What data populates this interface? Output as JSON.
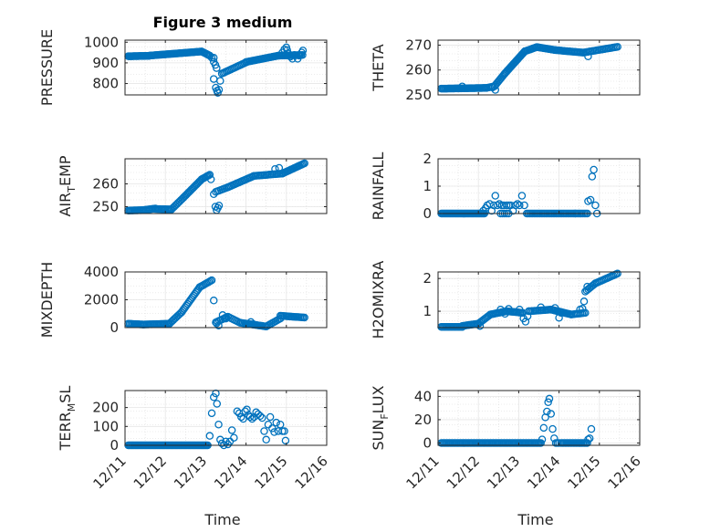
{
  "figure": {
    "title": "Figure 3 medium",
    "background": "#ffffff",
    "marker_color": "#0072BD",
    "x_tick_labels": [
      "12/11",
      "12/12",
      "12/13",
      "12/14",
      "12/15",
      "12/16"
    ],
    "x_axis_label": "Time"
  },
  "chart_data": [
    {
      "id": "pressure",
      "type": "scatter",
      "marker": "circle-open",
      "ylabel": "PRESSURE",
      "ylabel_sub": "",
      "ylim": [
        745,
        1010
      ],
      "yticks": [
        800,
        900,
        1000
      ],
      "xlim": [
        0,
        5
      ],
      "xtick_labels": [
        "12/11",
        "12/12",
        "12/13",
        "12/14",
        "12/15",
        "12/16"
      ],
      "grid": true,
      "segments": [
        {
          "x0": 0.08,
          "x1": 0.6,
          "y0": 932,
          "y1": 934,
          "n": 26
        },
        {
          "x0": 0.6,
          "x1": 1.9,
          "y0": 935,
          "y1": 955,
          "n": 50
        },
        {
          "x0": 1.9,
          "x1": 2.1,
          "y0": 955,
          "y1": 935,
          "n": 8
        },
        {
          "x0": 2.4,
          "x1": 3.0,
          "y0": 848,
          "y1": 902,
          "n": 18
        },
        {
          "x0": 3.0,
          "x1": 3.8,
          "y0": 904,
          "y1": 935,
          "n": 25
        },
        {
          "x0": 3.8,
          "x1": 4.4,
          "y0": 935,
          "y1": 938,
          "n": 18
        }
      ],
      "points": [
        {
          "x": 2.1,
          "y": 935
        },
        {
          "x": 2.15,
          "y": 925
        },
        {
          "x": 2.2,
          "y": 905
        },
        {
          "x": 2.24,
          "y": 890
        },
        {
          "x": 2.27,
          "y": 875
        },
        {
          "x": 2.2,
          "y": 822
        },
        {
          "x": 2.25,
          "y": 780
        },
        {
          "x": 2.28,
          "y": 765
        },
        {
          "x": 2.3,
          "y": 755
        },
        {
          "x": 2.33,
          "y": 770
        },
        {
          "x": 2.36,
          "y": 813
        },
        {
          "x": 2.2,
          "y": 925
        },
        {
          "x": 3.9,
          "y": 950
        },
        {
          "x": 3.95,
          "y": 965
        },
        {
          "x": 4.0,
          "y": 975
        },
        {
          "x": 4.02,
          "y": 962
        },
        {
          "x": 4.05,
          "y": 945
        },
        {
          "x": 4.1,
          "y": 930
        },
        {
          "x": 4.15,
          "y": 920
        },
        {
          "x": 4.2,
          "y": 938
        },
        {
          "x": 4.28,
          "y": 920
        },
        {
          "x": 4.32,
          "y": 935
        },
        {
          "x": 4.38,
          "y": 950
        },
        {
          "x": 4.41,
          "y": 960
        }
      ]
    },
    {
      "id": "theta",
      "type": "scatter",
      "marker": "circle-open",
      "ylabel": "THETA",
      "ylabel_sub": "",
      "ylim": [
        250,
        272
      ],
      "yticks": [
        250,
        260,
        270
      ],
      "xlim": [
        0,
        5
      ],
      "xtick_labels": [
        "12/11",
        "12/12",
        "12/13",
        "12/14",
        "12/15",
        "12/16"
      ],
      "grid": true,
      "segments": [
        {
          "x0": 0.08,
          "x1": 1.2,
          "y0": 252.5,
          "y1": 252.8,
          "n": 40
        },
        {
          "x0": 1.2,
          "x1": 1.4,
          "y0": 252.8,
          "y1": 253.5,
          "n": 6
        },
        {
          "x0": 1.4,
          "x1": 1.65,
          "y0": 253.5,
          "y1": 258.5,
          "n": 10
        },
        {
          "x0": 1.65,
          "x1": 2.15,
          "y0": 258.5,
          "y1": 267.5,
          "n": 22
        },
        {
          "x0": 2.15,
          "x1": 2.45,
          "y0": 267.5,
          "y1": 269.2,
          "n": 10
        },
        {
          "x0": 2.45,
          "x1": 2.9,
          "y0": 269.2,
          "y1": 268.0,
          "n": 14
        },
        {
          "x0": 2.9,
          "x1": 3.6,
          "y0": 268.0,
          "y1": 267.0,
          "n": 22
        },
        {
          "x0": 3.6,
          "x1": 4.45,
          "y0": 267.0,
          "y1": 269.3,
          "n": 24
        }
      ],
      "points": [
        {
          "x": 1.35,
          "y": 253.0
        },
        {
          "x": 1.42,
          "y": 252.0
        },
        {
          "x": 3.72,
          "y": 265.5
        },
        {
          "x": 0.6,
          "y": 253.4
        }
      ]
    },
    {
      "id": "air_temp",
      "type": "scatter",
      "marker": "circle-open",
      "ylabel": "AIR",
      "ylabel_sub": "T",
      "ylabel_after": "EMP",
      "ylim": [
        247,
        271
      ],
      "yticks": [
        250,
        260
      ],
      "xlim": [
        0,
        5
      ],
      "xtick_labels": [
        "12/11",
        "12/12",
        "12/13",
        "12/14",
        "12/15",
        "12/16"
      ],
      "grid": true,
      "segments": [
        {
          "x0": 0.08,
          "x1": 0.45,
          "y0": 248.3,
          "y1": 248.5,
          "n": 14
        },
        {
          "x0": 0.45,
          "x1": 0.75,
          "y0": 248.5,
          "y1": 249.2,
          "n": 10
        },
        {
          "x0": 0.75,
          "x1": 1.15,
          "y0": 249.0,
          "y1": 248.8,
          "n": 14
        },
        {
          "x0": 1.15,
          "x1": 1.45,
          "y0": 248.8,
          "y1": 254.0,
          "n": 10
        },
        {
          "x0": 1.45,
          "x1": 1.9,
          "y0": 254.0,
          "y1": 262.0,
          "n": 16
        },
        {
          "x0": 1.9,
          "x1": 2.1,
          "y0": 262.0,
          "y1": 264.0,
          "n": 8
        },
        {
          "x0": 2.25,
          "x1": 2.55,
          "y0": 256.5,
          "y1": 258.5,
          "n": 8
        },
        {
          "x0": 2.55,
          "x1": 3.2,
          "y0": 258.5,
          "y1": 263.5,
          "n": 20
        },
        {
          "x0": 3.2,
          "x1": 3.9,
          "y0": 263.5,
          "y1": 264.5,
          "n": 20
        },
        {
          "x0": 3.9,
          "x1": 4.45,
          "y0": 264.5,
          "y1": 269.0,
          "n": 18
        }
      ],
      "points": [
        {
          "x": 2.13,
          "y": 262.0
        },
        {
          "x": 2.2,
          "y": 255.5
        },
        {
          "x": 2.24,
          "y": 250.0
        },
        {
          "x": 2.27,
          "y": 248.5
        },
        {
          "x": 2.3,
          "y": 249.5
        },
        {
          "x": 2.33,
          "y": 250.5
        },
        {
          "x": 3.72,
          "y": 266.5
        },
        {
          "x": 3.82,
          "y": 267.0
        }
      ]
    },
    {
      "id": "rainfall",
      "type": "scatter",
      "marker": "circle-open",
      "ylabel": "RAINFALL",
      "ylabel_sub": "",
      "ylim": [
        0,
        2
      ],
      "yticks": [
        0,
        1,
        2
      ],
      "xlim": [
        0,
        5
      ],
      "xtick_labels": [
        "12/11",
        "12/12",
        "12/13",
        "12/14",
        "12/15",
        "12/16"
      ],
      "grid": true,
      "segments": [
        {
          "x0": 0.08,
          "x1": 1.15,
          "y0": 0.0,
          "y1": 0.0,
          "n": 40
        },
        {
          "x0": 1.55,
          "x1": 1.75,
          "y0": 0.0,
          "y1": 0.0,
          "n": 5
        },
        {
          "x0": 2.2,
          "x1": 3.4,
          "y0": 0.0,
          "y1": 0.0,
          "n": 34
        },
        {
          "x0": 3.4,
          "x1": 3.7,
          "y0": 0.0,
          "y1": 0.0,
          "n": 9
        }
      ],
      "points": [
        {
          "x": 1.12,
          "y": 0.1
        },
        {
          "x": 1.18,
          "y": 0.2
        },
        {
          "x": 1.22,
          "y": 0.3
        },
        {
          "x": 1.28,
          "y": 0.35
        },
        {
          "x": 1.33,
          "y": 0.1
        },
        {
          "x": 1.38,
          "y": 0.3
        },
        {
          "x": 1.42,
          "y": 0.65
        },
        {
          "x": 1.47,
          "y": 0.3
        },
        {
          "x": 1.52,
          "y": 0.35
        },
        {
          "x": 1.58,
          "y": 0.3
        },
        {
          "x": 1.63,
          "y": 0.3
        },
        {
          "x": 1.7,
          "y": 0.3
        },
        {
          "x": 1.75,
          "y": 0.3
        },
        {
          "x": 1.8,
          "y": 0.3
        },
        {
          "x": 1.86,
          "y": 0.1
        },
        {
          "x": 1.92,
          "y": 0.3
        },
        {
          "x": 1.97,
          "y": 0.35
        },
        {
          "x": 2.02,
          "y": 0.3
        },
        {
          "x": 2.08,
          "y": 0.65
        },
        {
          "x": 2.14,
          "y": 0.3
        },
        {
          "x": 3.72,
          "y": 0.45
        },
        {
          "x": 3.78,
          "y": 0.5
        },
        {
          "x": 3.82,
          "y": 1.35
        },
        {
          "x": 3.86,
          "y": 1.6
        },
        {
          "x": 3.9,
          "y": 0.3
        },
        {
          "x": 3.94,
          "y": 0.0
        }
      ]
    },
    {
      "id": "mixdepth",
      "type": "scatter",
      "marker": "circle-open",
      "ylabel": "MIXDEPTH",
      "ylabel_sub": "",
      "ylim": [
        0,
        4000
      ],
      "yticks": [
        0,
        2000,
        4000
      ],
      "xlim": [
        0,
        5
      ],
      "xtick_labels": [
        "12/11",
        "12/12",
        "12/13",
        "12/14",
        "12/15",
        "12/16"
      ],
      "grid": true,
      "segments": [
        {
          "x0": 0.08,
          "x1": 0.45,
          "y0": 280,
          "y1": 220,
          "n": 12
        },
        {
          "x0": 0.45,
          "x1": 1.1,
          "y0": 220,
          "y1": 280,
          "n": 22
        },
        {
          "x0": 1.1,
          "x1": 1.4,
          "y0": 280,
          "y1": 1100,
          "n": 10
        },
        {
          "x0": 1.4,
          "x1": 1.85,
          "y0": 1100,
          "y1": 2900,
          "n": 16
        },
        {
          "x0": 1.85,
          "x1": 2.15,
          "y0": 2900,
          "y1": 3400,
          "n": 10
        },
        {
          "x0": 2.25,
          "x1": 2.55,
          "y0": 380,
          "y1": 780,
          "n": 8
        },
        {
          "x0": 2.55,
          "x1": 2.85,
          "y0": 780,
          "y1": 350,
          "n": 8
        },
        {
          "x0": 2.85,
          "x1": 3.5,
          "y0": 350,
          "y1": 80,
          "n": 20
        },
        {
          "x0": 3.5,
          "x1": 3.85,
          "y0": 80,
          "y1": 650,
          "n": 10
        },
        {
          "x0": 3.85,
          "x1": 4.45,
          "y0": 850,
          "y1": 720,
          "n": 18
        }
      ],
      "points": [
        {
          "x": 2.2,
          "y": 1950
        },
        {
          "x": 2.27,
          "y": 300
        },
        {
          "x": 2.32,
          "y": 150
        },
        {
          "x": 2.42,
          "y": 900
        },
        {
          "x": 2.48,
          "y": 700
        },
        {
          "x": 2.5,
          "y": 650
        },
        {
          "x": 3.12,
          "y": 400
        },
        {
          "x": 3.18,
          "y": 250
        }
      ]
    },
    {
      "id": "h2omixra",
      "type": "scatter",
      "marker": "circle-open",
      "ylabel": "H2OMIXRA",
      "ylabel_sub": "",
      "ylim": [
        0.5,
        2.2
      ],
      "yticks": [
        1,
        2
      ],
      "xlim": [
        0,
        5
      ],
      "xtick_labels": [
        "12/11",
        "12/12",
        "12/13",
        "12/14",
        "12/15",
        "12/16"
      ],
      "grid": true,
      "segments": [
        {
          "x0": 0.08,
          "x1": 0.6,
          "y0": 0.52,
          "y1": 0.52,
          "n": 18
        },
        {
          "x0": 0.6,
          "x1": 1.0,
          "y0": 0.55,
          "y1": 0.62,
          "n": 14
        },
        {
          "x0": 1.0,
          "x1": 1.3,
          "y0": 0.62,
          "y1": 0.9,
          "n": 10
        },
        {
          "x0": 1.3,
          "x1": 1.7,
          "y0": 0.9,
          "y1": 1.0,
          "n": 14
        },
        {
          "x0": 1.7,
          "x1": 2.1,
          "y0": 1.0,
          "y1": 0.95,
          "n": 14
        },
        {
          "x0": 2.25,
          "x1": 2.8,
          "y0": 1.0,
          "y1": 1.05,
          "n": 16
        },
        {
          "x0": 2.8,
          "x1": 3.3,
          "y0": 1.05,
          "y1": 0.9,
          "n": 16
        },
        {
          "x0": 3.3,
          "x1": 3.65,
          "y0": 0.9,
          "y1": 0.95,
          "n": 10
        },
        {
          "x0": 3.65,
          "x1": 3.9,
          "y0": 1.6,
          "y1": 1.85,
          "n": 8
        },
        {
          "x0": 3.9,
          "x1": 4.45,
          "y0": 1.85,
          "y1": 2.15,
          "n": 16
        }
      ],
      "points": [
        {
          "x": 1.04,
          "y": 0.55
        },
        {
          "x": 1.55,
          "y": 1.05
        },
        {
          "x": 1.66,
          "y": 0.92
        },
        {
          "x": 1.75,
          "y": 1.07
        },
        {
          "x": 2.02,
          "y": 1.05
        },
        {
          "x": 2.12,
          "y": 0.78
        },
        {
          "x": 2.17,
          "y": 0.68
        },
        {
          "x": 2.22,
          "y": 0.85
        },
        {
          "x": 2.55,
          "y": 1.12
        },
        {
          "x": 2.9,
          "y": 1.1
        },
        {
          "x": 3.0,
          "y": 0.8
        },
        {
          "x": 3.05,
          "y": 0.95
        },
        {
          "x": 3.52,
          "y": 1.05
        },
        {
          "x": 3.58,
          "y": 1.08
        },
        {
          "x": 3.62,
          "y": 1.3
        },
        {
          "x": 3.7,
          "y": 1.75
        }
      ]
    },
    {
      "id": "terr_msl",
      "type": "scatter",
      "marker": "circle-open",
      "ylabel": "TERR",
      "ylabel_sub": "M",
      "ylabel_after": "SL",
      "ylim": [
        0,
        290
      ],
      "yticks": [
        0,
        100,
        200
      ],
      "xlim": [
        0,
        5
      ],
      "xtick_labels": [
        "12/11",
        "12/12",
        "12/13",
        "12/14",
        "12/15",
        "12/16"
      ],
      "grid": true,
      "segments": [
        {
          "x0": 0.08,
          "x1": 2.05,
          "y0": 0,
          "y1": 0,
          "n": 70
        }
      ],
      "points": [
        {
          "x": 2.1,
          "y": 50
        },
        {
          "x": 2.15,
          "y": 170
        },
        {
          "x": 2.2,
          "y": 255
        },
        {
          "x": 2.25,
          "y": 275
        },
        {
          "x": 2.28,
          "y": 220
        },
        {
          "x": 2.32,
          "y": 110
        },
        {
          "x": 2.36,
          "y": 30
        },
        {
          "x": 2.4,
          "y": 10
        },
        {
          "x": 2.45,
          "y": 0
        },
        {
          "x": 2.5,
          "y": 20
        },
        {
          "x": 2.55,
          "y": 5
        },
        {
          "x": 2.6,
          "y": 20
        },
        {
          "x": 2.65,
          "y": 80
        },
        {
          "x": 2.7,
          "y": 40
        },
        {
          "x": 2.78,
          "y": 180
        },
        {
          "x": 2.83,
          "y": 170
        },
        {
          "x": 2.88,
          "y": 150
        },
        {
          "x": 2.93,
          "y": 140
        },
        {
          "x": 2.98,
          "y": 180
        },
        {
          "x": 3.02,
          "y": 190
        },
        {
          "x": 3.06,
          "y": 160
        },
        {
          "x": 3.1,
          "y": 150
        },
        {
          "x": 3.15,
          "y": 140
        },
        {
          "x": 3.2,
          "y": 150
        },
        {
          "x": 3.25,
          "y": 175
        },
        {
          "x": 3.3,
          "y": 165
        },
        {
          "x": 3.35,
          "y": 155
        },
        {
          "x": 3.4,
          "y": 145
        },
        {
          "x": 3.45,
          "y": 75
        },
        {
          "x": 3.5,
          "y": 30
        },
        {
          "x": 3.55,
          "y": 110
        },
        {
          "x": 3.6,
          "y": 150
        },
        {
          "x": 3.65,
          "y": 90
        },
        {
          "x": 3.7,
          "y": 70
        },
        {
          "x": 3.75,
          "y": 120
        },
        {
          "x": 3.8,
          "y": 75
        },
        {
          "x": 3.85,
          "y": 110
        },
        {
          "x": 3.9,
          "y": 75
        },
        {
          "x": 3.95,
          "y": 75
        },
        {
          "x": 3.98,
          "y": 25
        }
      ]
    },
    {
      "id": "sun_flux",
      "type": "scatter",
      "marker": "circle-open",
      "ylabel": "SUN",
      "ylabel_sub": "F",
      "ylabel_after": "LUX",
      "ylim": [
        -2,
        45
      ],
      "yticks": [
        0,
        20,
        40
      ],
      "xlim": [
        0,
        5
      ],
      "xtick_labels": [
        "12/11",
        "12/12",
        "12/13",
        "12/14",
        "12/15",
        "12/16"
      ],
      "grid": true,
      "segments": [
        {
          "x0": 0.08,
          "x1": 2.55,
          "y0": 0,
          "y1": 0,
          "n": 80
        },
        {
          "x0": 3.05,
          "x1": 3.7,
          "y0": 0,
          "y1": 0,
          "n": 20
        }
      ],
      "points": [
        {
          "x": 2.58,
          "y": 3
        },
        {
          "x": 2.62,
          "y": 13
        },
        {
          "x": 2.66,
          "y": 22
        },
        {
          "x": 2.7,
          "y": 27
        },
        {
          "x": 2.73,
          "y": 35
        },
        {
          "x": 2.76,
          "y": 38
        },
        {
          "x": 2.8,
          "y": 25
        },
        {
          "x": 2.84,
          "y": 12
        },
        {
          "x": 2.88,
          "y": 4
        },
        {
          "x": 2.92,
          "y": 0
        },
        {
          "x": 2.96,
          "y": 0
        },
        {
          "x": 3.0,
          "y": 0
        },
        {
          "x": 3.72,
          "y": 3
        },
        {
          "x": 3.76,
          "y": 4
        },
        {
          "x": 3.8,
          "y": 12
        }
      ]
    }
  ]
}
